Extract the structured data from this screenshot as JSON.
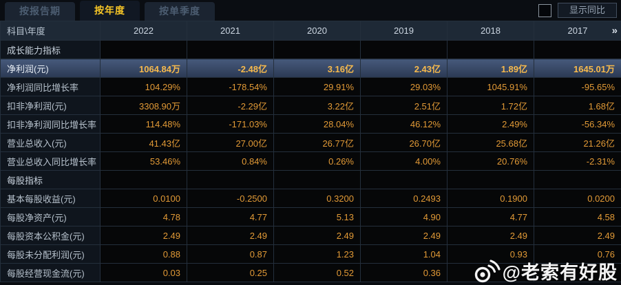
{
  "tabs": [
    {
      "label": "按报告期",
      "active": false
    },
    {
      "label": "按年度",
      "active": true
    },
    {
      "label": "按单季度",
      "active": false
    }
  ],
  "controls": {
    "compare_checkbox_checked": false,
    "compare_label": "显示同比"
  },
  "table": {
    "corner_label": "科目\\年度",
    "years": [
      "2022",
      "2021",
      "2020",
      "2019",
      "2018",
      "2017"
    ],
    "more_icon": "»",
    "rows": [
      {
        "type": "section",
        "label": "成长能力指标",
        "values": [
          "",
          "",
          "",
          "",
          "",
          ""
        ]
      },
      {
        "type": "highlight",
        "label": "净利润(元)",
        "values": [
          "1064.84万",
          "-2.48亿",
          "3.16亿",
          "2.43亿",
          "1.89亿",
          "1645.01万"
        ]
      },
      {
        "type": "data",
        "label": "净利润同比增长率",
        "values": [
          "104.29%",
          "-178.54%",
          "29.91%",
          "29.03%",
          "1045.91%",
          "-95.65%"
        ]
      },
      {
        "type": "data",
        "label": "扣非净利润(元)",
        "values": [
          "3308.90万",
          "-2.29亿",
          "3.22亿",
          "2.51亿",
          "1.72亿",
          "1.68亿"
        ]
      },
      {
        "type": "data",
        "label": "扣非净利润同比增长率",
        "values": [
          "114.48%",
          "-171.03%",
          "28.04%",
          "46.12%",
          "2.49%",
          "-56.34%"
        ]
      },
      {
        "type": "data",
        "label": "营业总收入(元)",
        "values": [
          "41.43亿",
          "27.00亿",
          "26.77亿",
          "26.70亿",
          "25.68亿",
          "21.26亿"
        ]
      },
      {
        "type": "data",
        "label": "营业总收入同比增长率",
        "values": [
          "53.46%",
          "0.84%",
          "0.26%",
          "4.00%",
          "20.76%",
          "-2.31%"
        ]
      },
      {
        "type": "section",
        "label": "每股指标",
        "values": [
          "",
          "",
          "",
          "",
          "",
          ""
        ]
      },
      {
        "type": "data",
        "label": "基本每股收益(元)",
        "values": [
          "0.0100",
          "-0.2500",
          "0.3200",
          "0.2493",
          "0.1900",
          "0.0200"
        ]
      },
      {
        "type": "data",
        "label": "每股净资产(元)",
        "values": [
          "4.78",
          "4.77",
          "5.13",
          "4.90",
          "4.77",
          "4.58"
        ]
      },
      {
        "type": "data",
        "label": "每股资本公积金(元)",
        "values": [
          "2.49",
          "2.49",
          "2.49",
          "2.49",
          "2.49",
          "2.49"
        ]
      },
      {
        "type": "data",
        "label": "每股未分配利润(元)",
        "values": [
          "0.88",
          "0.87",
          "1.23",
          "1.04",
          "0.93",
          "0.76"
        ]
      },
      {
        "type": "data",
        "label": "每股经营现金流(元)",
        "values": [
          "0.03",
          "0.25",
          "0.52",
          "0.36",
          "",
          ""
        ]
      }
    ]
  },
  "watermark": {
    "icon": "weibo-icon",
    "handle": "@老索有好股"
  },
  "colors": {
    "tab_active_text": "#f6c526",
    "value_orange": "#e29a36",
    "highlight_value_gold": "#f7ba4d",
    "highlight_row_top": "#46597b",
    "highlight_row_bottom": "#2b3953",
    "header_bg": "#1e2936",
    "cell_bg": "#060708",
    "label_cell_bg": "#0f151d",
    "grid_line": "#242f3c"
  }
}
